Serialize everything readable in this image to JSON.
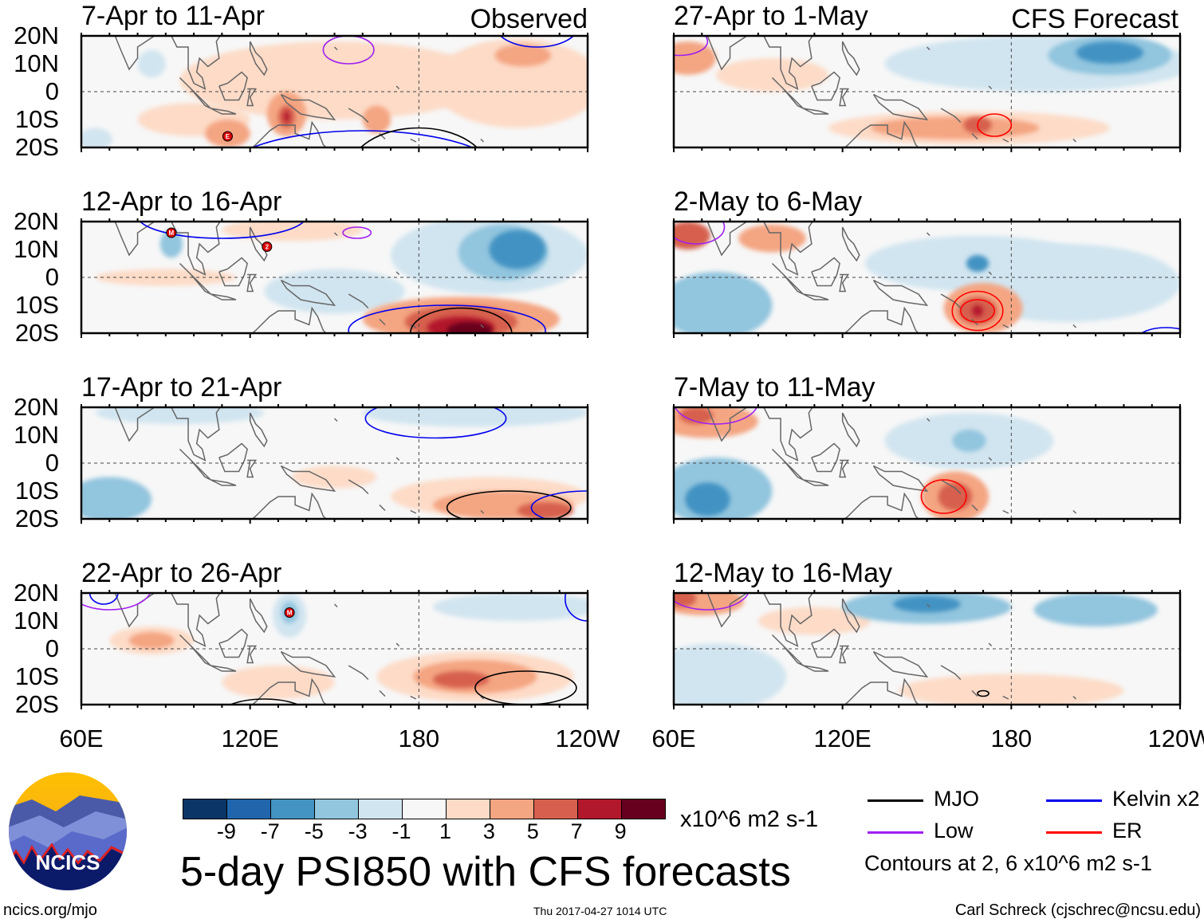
{
  "figure_title": "5-day PSI850 with CFS forecasts",
  "left_header": "Observed",
  "right_header": "CFS Forecast",
  "lat_labels": [
    "20N",
    "10N",
    "0",
    "10S",
    "20S"
  ],
  "lon_labels": [
    "60E",
    "120E",
    "180",
    "120W"
  ],
  "colorbar": {
    "units": "x10^6 m2 s-1",
    "labels": [
      "-9",
      "-7",
      "-5",
      "-3",
      "-1",
      "1",
      "3",
      "5",
      "7",
      "9"
    ],
    "colors": [
      "#0b3566",
      "#2166ac",
      "#4393c3",
      "#92c5de",
      "#d1e5f0",
      "#f7f7f7",
      "#fddbc7",
      "#f4a582",
      "#d6604d",
      "#b2182b",
      "#67001f"
    ]
  },
  "legend": {
    "items": [
      {
        "label": "MJO",
        "color": "#000000"
      },
      {
        "label": "Kelvin x2",
        "color": "#0000ee"
      },
      {
        "label": "Low",
        "color": "#a020f0"
      },
      {
        "label": "ER",
        "color": "#ff0000"
      }
    ],
    "contour_note": "Contours at 2, 6 x10^6 m2 s-1"
  },
  "footer": {
    "url": "ncics.org/mjo",
    "timestamp": "Thu 2017-04-27 1014 UTC",
    "author": "Carl Schreck (cjschrec@ncsu.edu)"
  },
  "logo_text": "NCICS",
  "chart_data": {
    "type": "heatmap",
    "variable": "PSI850 anomaly",
    "lon_range": [
      60,
      240
    ],
    "lat_range": [
      -20,
      20
    ],
    "panels": [
      {
        "title": "7-Apr to 11-Apr",
        "source": "Observed",
        "anomalies": [
          {
            "lon": 150,
            "lat": 4,
            "v": 1.5,
            "rx": 55,
            "ry": 14
          },
          {
            "lon": 215,
            "lat": 3,
            "v": 1.5,
            "rx": 30,
            "ry": 16
          },
          {
            "lon": 100,
            "lat": -10,
            "v": 1.5,
            "rx": 20,
            "ry": 6
          },
          {
            "lon": 85,
            "lat": 10,
            "v": -1.5,
            "rx": 5,
            "ry": 5
          },
          {
            "lon": 65,
            "lat": -17,
            "v": -1.5,
            "rx": 6,
            "ry": 4
          },
          {
            "lon": 112,
            "lat": -15,
            "v": 4,
            "rx": 8,
            "ry": 5
          },
          {
            "lon": 133,
            "lat": -8,
            "v": 4,
            "rx": 7,
            "ry": 8
          },
          {
            "lon": 133,
            "lat": -9,
            "v": 6,
            "rx": 3,
            "ry": 4
          },
          {
            "lon": 133,
            "lat": -9,
            "v": 8,
            "rx": 1,
            "ry": 2
          },
          {
            "lon": 165,
            "lat": -10,
            "v": 3.5,
            "rx": 5,
            "ry": 5
          },
          {
            "lon": 217,
            "lat": 13,
            "v": 3.5,
            "rx": 10,
            "ry": 4
          }
        ],
        "contours": [
          {
            "type": "Low",
            "lon": 155,
            "lat": 15,
            "rx": 9,
            "ry": 5
          },
          {
            "type": "Kelvin x2",
            "lon": 160,
            "lat": -30,
            "rx": 50,
            "ry": 16
          },
          {
            "type": "Kelvin x2",
            "lon": 222,
            "lat": 24,
            "rx": 15,
            "ry": 8
          },
          {
            "type": "MJO",
            "lon": 180,
            "lat": -29,
            "rx": 25,
            "ry": 16
          },
          {
            "type": "MJO",
            "lon": 150,
            "lat": 24,
            "rx": 8,
            "ry": 4
          }
        ],
        "markers": [
          {
            "label": "E",
            "lon": 112,
            "lat": -16
          }
        ]
      },
      {
        "title": "12-Apr to 16-Apr",
        "source": "Observed",
        "anomalies": [
          {
            "lon": 205,
            "lat": 8,
            "v": -2,
            "rx": 35,
            "ry": 14
          },
          {
            "lon": 210,
            "lat": 9,
            "v": -4,
            "rx": 16,
            "ry": 10
          },
          {
            "lon": 215,
            "lat": 10,
            "v": -6,
            "rx": 10,
            "ry": 7
          },
          {
            "lon": 92,
            "lat": 12,
            "v": -3,
            "rx": 4,
            "ry": 5
          },
          {
            "lon": 150,
            "lat": -5,
            "v": -1.5,
            "rx": 25,
            "ry": 8
          },
          {
            "lon": 90,
            "lat": 0,
            "v": 1.5,
            "rx": 25,
            "ry": 3
          },
          {
            "lon": 195,
            "lat": -15,
            "v": 3,
            "rx": 35,
            "ry": 8
          },
          {
            "lon": 195,
            "lat": -16,
            "v": 6,
            "rx": 20,
            "ry": 6
          },
          {
            "lon": 195,
            "lat": -18,
            "v": 8,
            "rx": 12,
            "ry": 4
          },
          {
            "lon": 198,
            "lat": -19,
            "v": 10,
            "rx": 8,
            "ry": 3
          },
          {
            "lon": 135,
            "lat": 17,
            "v": 2,
            "rx": 25,
            "ry": 4
          }
        ],
        "contours": [
          {
            "type": "MJO",
            "lon": 195,
            "lat": -20,
            "rx": 18,
            "ry": 9
          },
          {
            "type": "Kelvin x2",
            "lon": 190,
            "lat": -19,
            "rx": 35,
            "ry": 9
          },
          {
            "type": "Low",
            "lon": 158,
            "lat": 16,
            "rx": 5,
            "ry": 2
          },
          {
            "type": "Kelvin x2",
            "lon": 110,
            "lat": 22,
            "rx": 30,
            "ry": 8
          }
        ],
        "markers": [
          {
            "label": "M",
            "lon": 92,
            "lat": 16
          },
          {
            "label": "2",
            "lon": 126,
            "lat": 11
          }
        ]
      },
      {
        "title": "17-Apr to 21-Apr",
        "source": "Observed",
        "anomalies": [
          {
            "lon": 70,
            "lat": -13,
            "v": -3,
            "rx": 15,
            "ry": 8
          },
          {
            "lon": 200,
            "lat": 18,
            "v": -2,
            "rx": 40,
            "ry": 5
          },
          {
            "lon": 95,
            "lat": 18,
            "v": -1.5,
            "rx": 30,
            "ry": 4
          },
          {
            "lon": 205,
            "lat": -12,
            "v": 2,
            "rx": 35,
            "ry": 7
          },
          {
            "lon": 210,
            "lat": -15,
            "v": 4,
            "rx": 25,
            "ry": 5
          },
          {
            "lon": 225,
            "lat": -17,
            "v": 6,
            "rx": 10,
            "ry": 3
          },
          {
            "lon": 150,
            "lat": -5,
            "v": 1.5,
            "rx": 15,
            "ry": 4
          }
        ],
        "contours": [
          {
            "type": "MJO",
            "lon": 212,
            "lat": -16,
            "rx": 22,
            "ry": 6
          },
          {
            "type": "Kelvin x2",
            "lon": 186,
            "lat": 16,
            "rx": 25,
            "ry": 7
          },
          {
            "type": "Kelvin x2",
            "lon": 240,
            "lat": -16,
            "rx": 20,
            "ry": 6
          },
          {
            "type": "ER",
            "lon": 190,
            "lat": -26,
            "rx": 8,
            "ry": 6
          },
          {
            "type": "MJO",
            "lon": 120,
            "lat": -26,
            "rx": 10,
            "ry": 6
          }
        ],
        "markers": []
      },
      {
        "title": "22-Apr to 26-Apr",
        "source": "Observed",
        "anomalies": [
          {
            "lon": 134,
            "lat": 12,
            "v": -2,
            "rx": 6,
            "ry": 8
          },
          {
            "lon": 134,
            "lat": 13,
            "v": -4,
            "rx": 3,
            "ry": 4
          },
          {
            "lon": 215,
            "lat": 15,
            "v": -2,
            "rx": 30,
            "ry": 5
          },
          {
            "lon": 85,
            "lat": 3,
            "v": 2,
            "rx": 15,
            "ry": 5
          },
          {
            "lon": 85,
            "lat": 3,
            "v": 4,
            "rx": 8,
            "ry": 3
          },
          {
            "lon": 200,
            "lat": -10,
            "v": 2,
            "rx": 35,
            "ry": 9
          },
          {
            "lon": 200,
            "lat": -10,
            "v": 4,
            "rx": 22,
            "ry": 6
          },
          {
            "lon": 195,
            "lat": -11,
            "v": 6,
            "rx": 10,
            "ry": 3
          },
          {
            "lon": 130,
            "lat": -12,
            "v": 1.5,
            "rx": 20,
            "ry": 6
          }
        ],
        "contours": [
          {
            "type": "MJO",
            "lon": 218,
            "lat": -14,
            "rx": 18,
            "ry": 6
          },
          {
            "type": "MJO",
            "lon": 125,
            "lat": -28,
            "rx": 20,
            "ry": 10
          },
          {
            "type": "Kelvin x2",
            "lon": 68,
            "lat": 20,
            "rx": 5,
            "ry": 4
          },
          {
            "type": "Low",
            "lon": 70,
            "lat": 22,
            "rx": 15,
            "ry": 8
          },
          {
            "type": "Kelvin x2",
            "lon": 240,
            "lat": 18,
            "rx": 8,
            "ry": 8
          }
        ],
        "markers": [
          {
            "label": "M",
            "lon": 134,
            "lat": 13
          }
        ]
      },
      {
        "title": "27-Apr to 1-May",
        "source": "CFS Forecast",
        "anomalies": [
          {
            "lon": 190,
            "lat": 10,
            "v": -2,
            "rx": 55,
            "ry": 10
          },
          {
            "lon": 215,
            "lat": 13,
            "v": -4,
            "rx": 22,
            "ry": 7
          },
          {
            "lon": 215,
            "lat": 14,
            "v": -6,
            "rx": 12,
            "ry": 4
          },
          {
            "lon": 65,
            "lat": 12,
            "v": 3,
            "rx": 10,
            "ry": 6
          },
          {
            "lon": 165,
            "lat": -13,
            "v": 2,
            "rx": 50,
            "ry": 6
          },
          {
            "lon": 160,
            "lat": -13,
            "v": 4,
            "rx": 30,
            "ry": 4
          },
          {
            "lon": 168,
            "lat": -12,
            "v": 6,
            "rx": 5,
            "ry": 3
          },
          {
            "lon": 95,
            "lat": 6,
            "v": 1.5,
            "rx": 20,
            "ry": 6
          }
        ],
        "contours": [
          {
            "type": "ER",
            "lon": 174,
            "lat": -12,
            "rx": 6,
            "ry": 4
          },
          {
            "type": "Low",
            "lon": 62,
            "lat": 18,
            "rx": 10,
            "ry": 5
          }
        ],
        "markers": []
      },
      {
        "title": "2-May to 6-May",
        "source": "CFS Forecast",
        "anomalies": [
          {
            "lon": 168,
            "lat": 5,
            "v": -2,
            "rx": 40,
            "ry": 10
          },
          {
            "lon": 168,
            "lat": 5,
            "v": -5,
            "rx": 4,
            "ry": 3
          },
          {
            "lon": 75,
            "lat": -10,
            "v": -3,
            "rx": 20,
            "ry": 12
          },
          {
            "lon": 200,
            "lat": -2,
            "v": -1.5,
            "rx": 40,
            "ry": 14
          },
          {
            "lon": 65,
            "lat": 15,
            "v": 5,
            "rx": 8,
            "ry": 5
          },
          {
            "lon": 95,
            "lat": 14,
            "v": 3,
            "rx": 12,
            "ry": 5
          },
          {
            "lon": 170,
            "lat": -11,
            "v": 3,
            "rx": 14,
            "ry": 9
          },
          {
            "lon": 168,
            "lat": -12,
            "v": 6,
            "rx": 7,
            "ry": 5
          },
          {
            "lon": 168,
            "lat": -12,
            "v": 8,
            "rx": 2,
            "ry": 2
          }
        ],
        "contours": [
          {
            "type": "ER",
            "lon": 168,
            "lat": -12,
            "rx": 9,
            "ry": 7
          },
          {
            "type": "ER",
            "lon": 168,
            "lat": -12,
            "rx": 6,
            "ry": 4
          },
          {
            "type": "Kelvin x2",
            "lon": 235,
            "lat": -22,
            "rx": 10,
            "ry": 4
          },
          {
            "type": "Low",
            "lon": 68,
            "lat": 18,
            "rx": 10,
            "ry": 6
          }
        ],
        "markers": []
      },
      {
        "title": "7-May to 11-May",
        "source": "CFS Forecast",
        "anomalies": [
          {
            "lon": 165,
            "lat": 8,
            "v": -2,
            "rx": 30,
            "ry": 10
          },
          {
            "lon": 165,
            "lat": 8,
            "v": -4,
            "rx": 6,
            "ry": 4
          },
          {
            "lon": 75,
            "lat": -10,
            "v": -3,
            "rx": 20,
            "ry": 12
          },
          {
            "lon": 72,
            "lat": -13,
            "v": -5,
            "rx": 8,
            "ry": 6
          },
          {
            "lon": 72,
            "lat": 15,
            "v": 3,
            "rx": 18,
            "ry": 6
          },
          {
            "lon": 68,
            "lat": 17,
            "v": 6,
            "rx": 6,
            "ry": 3
          },
          {
            "lon": 160,
            "lat": -12,
            "v": 3,
            "rx": 12,
            "ry": 9
          },
          {
            "lon": 160,
            "lat": -12,
            "v": 5,
            "rx": 6,
            "ry": 5
          }
        ],
        "contours": [
          {
            "type": "ER",
            "lon": 156,
            "lat": -12,
            "rx": 8,
            "ry": 6
          },
          {
            "type": "Low",
            "lon": 75,
            "lat": 22,
            "rx": 15,
            "ry": 8
          }
        ],
        "markers": []
      },
      {
        "title": "12-May to 16-May",
        "source": "CFS Forecast",
        "anomalies": [
          {
            "lon": 150,
            "lat": 15,
            "v": -3,
            "rx": 30,
            "ry": 6
          },
          {
            "lon": 150,
            "lat": 16,
            "v": -5,
            "rx": 12,
            "ry": 3
          },
          {
            "lon": 210,
            "lat": 14,
            "v": -3,
            "rx": 22,
            "ry": 6
          },
          {
            "lon": 75,
            "lat": -10,
            "v": -2,
            "rx": 25,
            "ry": 12
          },
          {
            "lon": 70,
            "lat": 17,
            "v": 3,
            "rx": 15,
            "ry": 5
          },
          {
            "lon": 63,
            "lat": 18,
            "v": 6,
            "rx": 5,
            "ry": 3
          },
          {
            "lon": 180,
            "lat": -15,
            "v": 2,
            "rx": 40,
            "ry": 6
          },
          {
            "lon": 110,
            "lat": 10,
            "v": 1.5,
            "rx": 20,
            "ry": 5
          }
        ],
        "contours": [
          {
            "type": "MJO",
            "lon": 170,
            "lat": -16,
            "rx": 2,
            "ry": 1
          },
          {
            "type": "Low",
            "lon": 72,
            "lat": 22,
            "rx": 15,
            "ry": 8
          }
        ],
        "markers": []
      }
    ]
  }
}
